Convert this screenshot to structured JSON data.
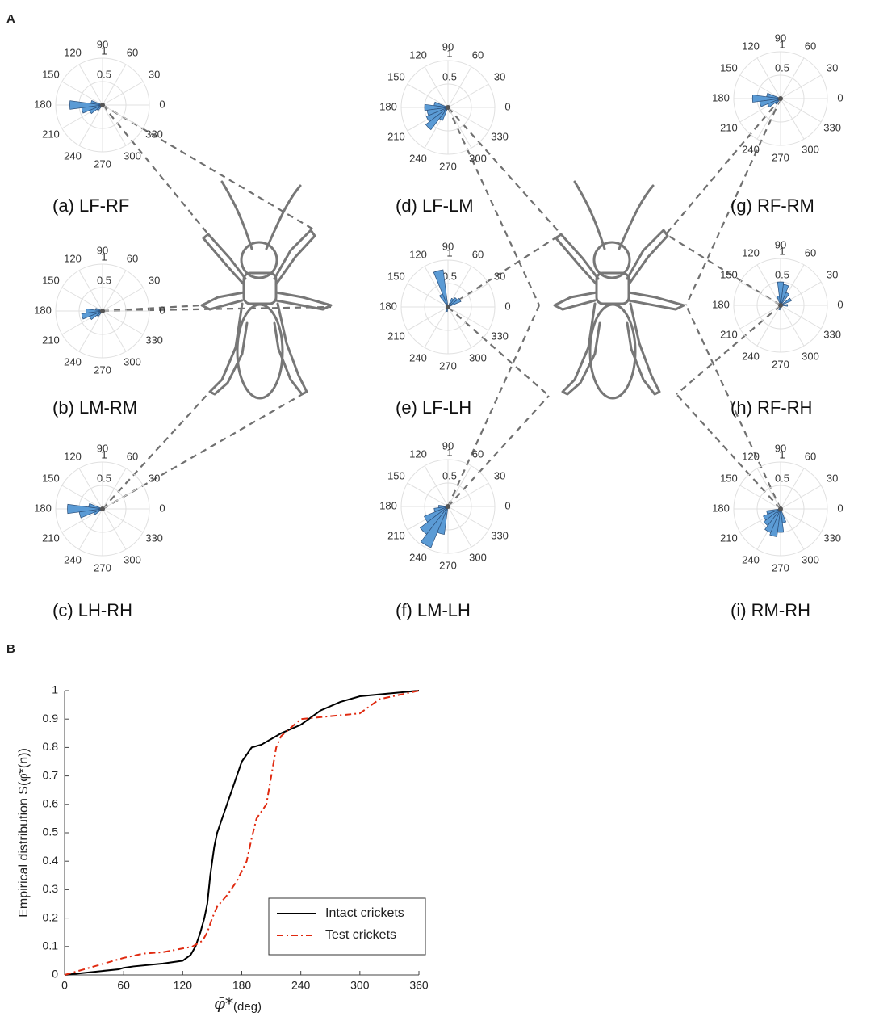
{
  "panel_labels": [
    "A",
    "B"
  ],
  "chart_data": [
    {
      "type": "polar",
      "title": "(a) LF-RF",
      "thetaticks": [
        0,
        30,
        60,
        90,
        120,
        150,
        180,
        210,
        240,
        270,
        300,
        330
      ],
      "rticks": [
        0.5,
        1
      ],
      "rlim": [
        0,
        1
      ],
      "color": "#5b9bd5",
      "theta": [
        165,
        180,
        195,
        210,
        225
      ],
      "values": [
        0.25,
        0.7,
        0.45,
        0.3,
        0.15
      ]
    },
    {
      "type": "polar",
      "title": "(b) LM-RM",
      "thetaticks": [
        0,
        30,
        60,
        90,
        120,
        150,
        180,
        210,
        240,
        270,
        300,
        330
      ],
      "rticks": [
        0.5,
        1
      ],
      "rlim": [
        0,
        1
      ],
      "color": "#5b9bd5",
      "theta": [
        165,
        180,
        195,
        210,
        225
      ],
      "values": [
        0.15,
        0.35,
        0.45,
        0.3,
        0.15
      ]
    },
    {
      "type": "polar",
      "title": "(c) LH-RH",
      "thetaticks": [
        0,
        30,
        60,
        90,
        120,
        150,
        180,
        210,
        240,
        270,
        300,
        330
      ],
      "rticks": [
        0.5,
        1
      ],
      "rlim": [
        0,
        1
      ],
      "color": "#5b9bd5",
      "theta": [
        165,
        180,
        195,
        210
      ],
      "values": [
        0.3,
        0.75,
        0.5,
        0.2
      ]
    },
    {
      "type": "polar",
      "title": "(d) LF-LM",
      "thetaticks": [
        0,
        30,
        60,
        90,
        120,
        150,
        180,
        210,
        240,
        270,
        300,
        330
      ],
      "rticks": [
        0.5,
        1
      ],
      "rlim": [
        0,
        1
      ],
      "color": "#5b9bd5",
      "theta": [
        165,
        180,
        195,
        210,
        225,
        240
      ],
      "values": [
        0.3,
        0.5,
        0.45,
        0.5,
        0.6,
        0.3
      ]
    },
    {
      "type": "polar",
      "title": "(e) LF-LH",
      "thetaticks": [
        0,
        30,
        60,
        90,
        120,
        150,
        180,
        210,
        240,
        270,
        300,
        330
      ],
      "rticks": [
        0.5,
        1
      ],
      "rlim": [
        0,
        1
      ],
      "color": "#5b9bd5",
      "theta": [
        30,
        45,
        60,
        105,
        120,
        255
      ],
      "values": [
        0.3,
        0.25,
        0.2,
        0.8,
        0.3,
        0.1
      ]
    },
    {
      "type": "polar",
      "title": "(f) LM-LH",
      "thetaticks": [
        0,
        30,
        60,
        90,
        120,
        150,
        180,
        210,
        240,
        270,
        300,
        330
      ],
      "rticks": [
        0.5,
        1
      ],
      "rlim": [
        0,
        1
      ],
      "color": "#5b9bd5",
      "theta": [
        180,
        195,
        210,
        225,
        240,
        255
      ],
      "values": [
        0.2,
        0.3,
        0.55,
        0.75,
        0.95,
        0.6
      ]
    },
    {
      "type": "polar",
      "title": "(g) RF-RM",
      "thetaticks": [
        0,
        30,
        60,
        90,
        120,
        150,
        180,
        210,
        240,
        270,
        300,
        330
      ],
      "rticks": [
        0.5,
        1
      ],
      "rlim": [
        0,
        1
      ],
      "color": "#5b9bd5",
      "theta": [
        165,
        180,
        195,
        210,
        225
      ],
      "values": [
        0.3,
        0.6,
        0.45,
        0.3,
        0.15
      ]
    },
    {
      "type": "polar",
      "title": "(h) RF-RH",
      "thetaticks": [
        0,
        30,
        60,
        90,
        120,
        150,
        180,
        210,
        240,
        270,
        300,
        330
      ],
      "rticks": [
        0.5,
        1
      ],
      "rlim": [
        0,
        1
      ],
      "color": "#5b9bd5",
      "theta": [
        0,
        30,
        60,
        75,
        90,
        105,
        255
      ],
      "values": [
        0.15,
        0.25,
        0.3,
        0.45,
        0.5,
        0.2,
        0.1
      ]
    },
    {
      "type": "polar",
      "title": "(i) RM-RH",
      "thetaticks": [
        0,
        30,
        60,
        90,
        120,
        150,
        180,
        210,
        240,
        270,
        300,
        330
      ],
      "rticks": [
        0.5,
        1
      ],
      "rlim": [
        0,
        1
      ],
      "color": "#5b9bd5",
      "theta": [
        195,
        210,
        225,
        240,
        255,
        270,
        285
      ],
      "values": [
        0.3,
        0.4,
        0.45,
        0.55,
        0.6,
        0.5,
        0.3
      ]
    },
    {
      "type": "line",
      "xlabel": "φ̄*",
      "xlabel_sub": "(deg)",
      "ylabel": "Empirical distribution S(φ̄*(n))",
      "xlim": [
        0,
        360
      ],
      "ylim": [
        0,
        1
      ],
      "xticks": [
        0,
        60,
        120,
        180,
        240,
        300,
        360
      ],
      "yticks": [
        0,
        0.1,
        0.2,
        0.3,
        0.4,
        0.5,
        0.6,
        0.7,
        0.8,
        0.9,
        1
      ],
      "series": [
        {
          "name": "Intact crickets",
          "color": "#000000",
          "dash": "solid",
          "x": [
            0,
            55,
            60,
            70,
            100,
            120,
            128,
            133,
            138,
            142,
            145,
            148,
            152,
            155,
            160,
            165,
            170,
            175,
            180,
            190,
            200,
            210,
            220,
            240,
            260,
            280,
            300,
            330,
            360
          ],
          "values": [
            0,
            0.02,
            0.025,
            0.03,
            0.04,
            0.05,
            0.07,
            0.1,
            0.15,
            0.2,
            0.25,
            0.35,
            0.45,
            0.5,
            0.55,
            0.6,
            0.65,
            0.7,
            0.75,
            0.8,
            0.81,
            0.83,
            0.85,
            0.88,
            0.93,
            0.96,
            0.98,
            0.99,
            1
          ]
        },
        {
          "name": "Test crickets",
          "color": "#e02a10",
          "dash": "dashdot",
          "x": [
            0,
            30,
            60,
            80,
            100,
            130,
            140,
            145,
            150,
            155,
            165,
            175,
            185,
            190,
            195,
            205,
            210,
            215,
            220,
            240,
            300,
            320,
            360
          ],
          "values": [
            0,
            0.03,
            0.06,
            0.075,
            0.08,
            0.1,
            0.12,
            0.15,
            0.2,
            0.24,
            0.28,
            0.33,
            0.4,
            0.48,
            0.55,
            0.6,
            0.7,
            0.8,
            0.84,
            0.9,
            0.92,
            0.97,
            1
          ]
        }
      ],
      "legend": "lower right"
    }
  ]
}
